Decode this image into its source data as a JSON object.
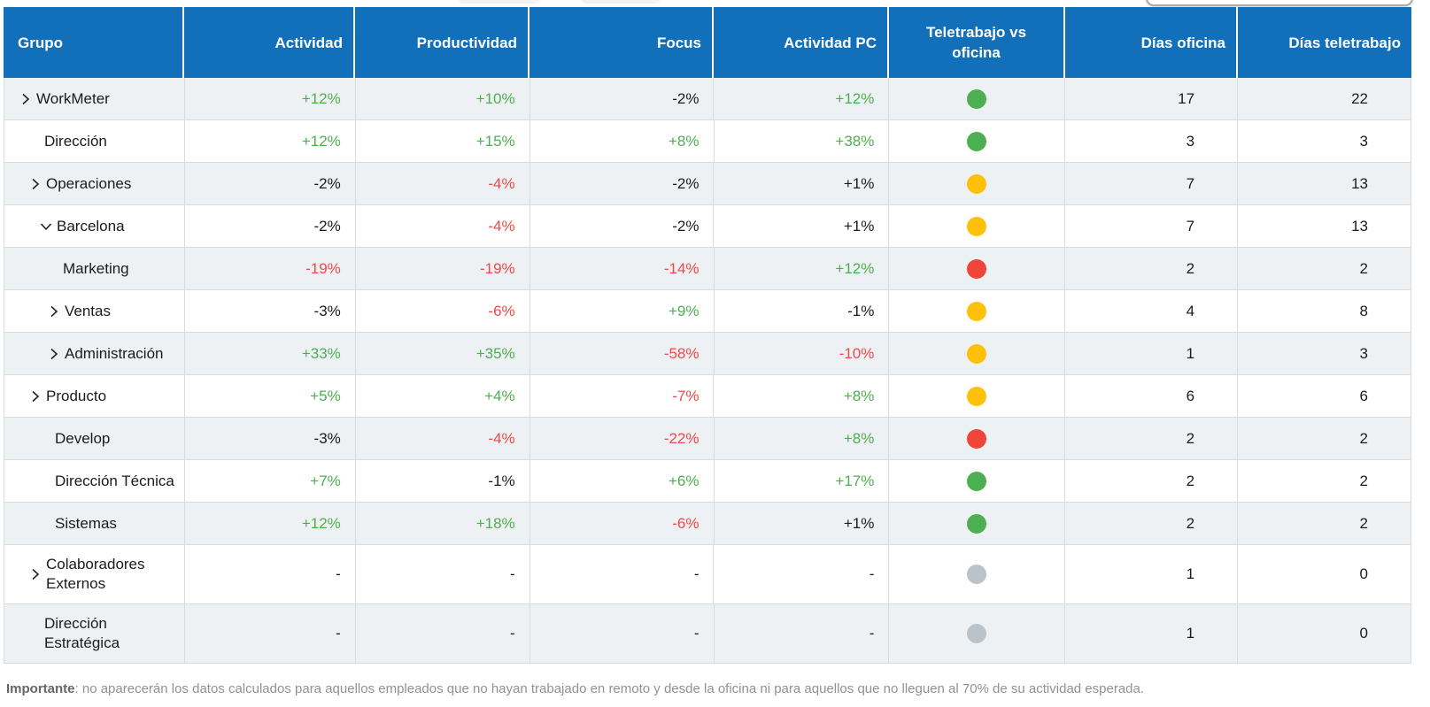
{
  "colors": {
    "header_bg": "#1270BA",
    "stripe_bg": "#EEF1F3",
    "row_bg": "#FFFFFF",
    "grid_border": "#D9DCDE",
    "positive": "#4CAF50",
    "negative": "#F0484B",
    "neutral": "#1B1B1B",
    "dot_green": "#4CAF50",
    "dot_yellow": "#FFC107",
    "dot_red": "#F0453B",
    "dot_gray": "#B9C3C9"
  },
  "table": {
    "columns": [
      {
        "key": "grupo",
        "label": "Grupo"
      },
      {
        "key": "actividad",
        "label": "Actividad"
      },
      {
        "key": "productividad",
        "label": "Productividad"
      },
      {
        "key": "focus",
        "label": "Focus"
      },
      {
        "key": "actividad_pc",
        "label": "Actividad PC"
      },
      {
        "key": "teletrabajo",
        "label": "Teletrabajo vs oficina"
      },
      {
        "key": "dias_oficina",
        "label": "Días oficina"
      },
      {
        "key": "dias_teletrabajo",
        "label": "Días teletrabajo"
      }
    ],
    "rows": [
      {
        "group": "WorkMeter",
        "level": 0,
        "chevron": "right",
        "metrics": [
          {
            "v": "+12%",
            "tone": "positive"
          },
          {
            "v": "+10%",
            "tone": "positive"
          },
          {
            "v": "-2%",
            "tone": "neutral"
          },
          {
            "v": "+12%",
            "tone": "positive"
          }
        ],
        "dot": "green",
        "days_office": "17",
        "days_remote": "22"
      },
      {
        "group": "Dirección",
        "level": 1,
        "chevron": null,
        "metrics": [
          {
            "v": "+12%",
            "tone": "positive"
          },
          {
            "v": "+15%",
            "tone": "positive"
          },
          {
            "v": "+8%",
            "tone": "positive"
          },
          {
            "v": "+38%",
            "tone": "positive"
          }
        ],
        "dot": "green",
        "days_office": "3",
        "days_remote": "3"
      },
      {
        "group": "Operaciones",
        "level": 1,
        "chevron": "right",
        "metrics": [
          {
            "v": "-2%",
            "tone": "neutral"
          },
          {
            "v": "-4%",
            "tone": "negative"
          },
          {
            "v": "-2%",
            "tone": "neutral"
          },
          {
            "v": "+1%",
            "tone": "neutral"
          }
        ],
        "dot": "yellow",
        "days_office": "7",
        "days_remote": "13"
      },
      {
        "group": "Barcelona",
        "level": 2,
        "chevron": "down",
        "metrics": [
          {
            "v": "-2%",
            "tone": "neutral"
          },
          {
            "v": "-4%",
            "tone": "negative"
          },
          {
            "v": "-2%",
            "tone": "neutral"
          },
          {
            "v": "+1%",
            "tone": "neutral"
          }
        ],
        "dot": "yellow",
        "days_office": "7",
        "days_remote": "13"
      },
      {
        "group": "Marketing",
        "level": 3,
        "chevron": null,
        "metrics": [
          {
            "v": "-19%",
            "tone": "negative"
          },
          {
            "v": "-19%",
            "tone": "negative"
          },
          {
            "v": "-14%",
            "tone": "negative"
          },
          {
            "v": "+12%",
            "tone": "positive"
          }
        ],
        "dot": "red",
        "days_office": "2",
        "days_remote": "2"
      },
      {
        "group": "Ventas",
        "level": 3,
        "chevron": "right",
        "metrics": [
          {
            "v": "-3%",
            "tone": "neutral"
          },
          {
            "v": "-6%",
            "tone": "negative"
          },
          {
            "v": "+9%",
            "tone": "positive"
          },
          {
            "v": "-1%",
            "tone": "neutral"
          }
        ],
        "dot": "yellow",
        "days_office": "4",
        "days_remote": "8"
      },
      {
        "group": "Administración",
        "level": 3,
        "chevron": "right",
        "metrics": [
          {
            "v": "+33%",
            "tone": "positive"
          },
          {
            "v": "+35%",
            "tone": "positive"
          },
          {
            "v": "-58%",
            "tone": "negative"
          },
          {
            "v": "-10%",
            "tone": "negative"
          }
        ],
        "dot": "yellow",
        "days_office": "1",
        "days_remote": "3"
      },
      {
        "group": "Producto",
        "level": 1,
        "chevron": "right",
        "metrics": [
          {
            "v": "+5%",
            "tone": "positive"
          },
          {
            "v": "+4%",
            "tone": "positive"
          },
          {
            "v": "-7%",
            "tone": "negative"
          },
          {
            "v": "+8%",
            "tone": "positive"
          }
        ],
        "dot": "yellow",
        "days_office": "6",
        "days_remote": "6"
      },
      {
        "group": "Develop",
        "level": 2,
        "chevron": null,
        "metrics": [
          {
            "v": "-3%",
            "tone": "neutral"
          },
          {
            "v": "-4%",
            "tone": "negative"
          },
          {
            "v": "-22%",
            "tone": "negative"
          },
          {
            "v": "+8%",
            "tone": "positive"
          }
        ],
        "dot": "red",
        "days_office": "2",
        "days_remote": "2"
      },
      {
        "group": "Dirección Técnica",
        "level": 2,
        "chevron": null,
        "metrics": [
          {
            "v": "+7%",
            "tone": "positive"
          },
          {
            "v": "-1%",
            "tone": "neutral"
          },
          {
            "v": "+6%",
            "tone": "positive"
          },
          {
            "v": "+17%",
            "tone": "positive"
          }
        ],
        "dot": "green",
        "days_office": "2",
        "days_remote": "2"
      },
      {
        "group": "Sistemas",
        "level": 2,
        "chevron": null,
        "metrics": [
          {
            "v": "+12%",
            "tone": "positive"
          },
          {
            "v": "+18%",
            "tone": "positive"
          },
          {
            "v": "-6%",
            "tone": "negative"
          },
          {
            "v": "+1%",
            "tone": "neutral"
          }
        ],
        "dot": "green",
        "days_office": "2",
        "days_remote": "2"
      },
      {
        "group": "Colaboradores Externos",
        "level": 1,
        "chevron": "right",
        "metrics": [
          {
            "v": "-",
            "tone": "neutral"
          },
          {
            "v": "-",
            "tone": "neutral"
          },
          {
            "v": "-",
            "tone": "neutral"
          },
          {
            "v": "-",
            "tone": "neutral"
          }
        ],
        "dot": "gray",
        "days_office": "1",
        "days_remote": "0"
      },
      {
        "group": "Dirección Estratégica",
        "level": 1,
        "chevron": null,
        "metrics": [
          {
            "v": "-",
            "tone": "neutral"
          },
          {
            "v": "-",
            "tone": "neutral"
          },
          {
            "v": "-",
            "tone": "neutral"
          },
          {
            "v": "-",
            "tone": "neutral"
          }
        ],
        "dot": "gray",
        "days_office": "1",
        "days_remote": "0"
      }
    ]
  },
  "footer": {
    "bold_label": "Importante",
    "text": ": no aparecerán los datos calculados para aquellos empleados que no hayan trabajado en remoto y desde la oficina ni para aquellos que no lleguen al 70% de su actividad esperada."
  }
}
